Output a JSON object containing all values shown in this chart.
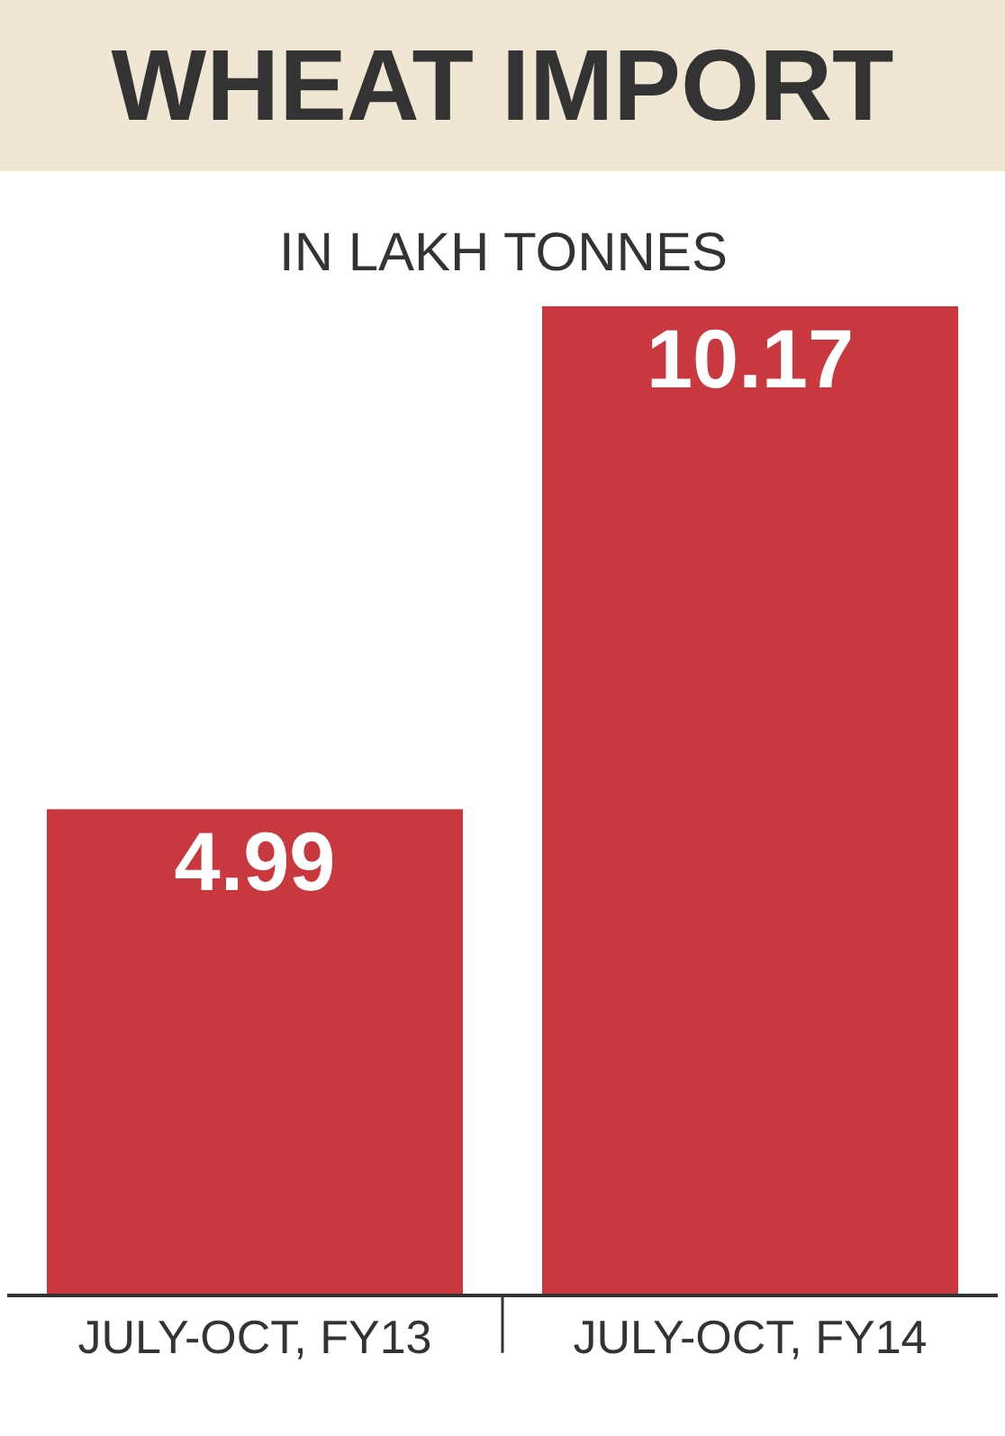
{
  "chart_data": {
    "type": "bar",
    "title": "WHEAT IMPORT",
    "subtitle": "IN LAKH TONNES",
    "categories": [
      "JULY-OCT, FY13",
      "JULY-OCT, FY14"
    ],
    "values": [
      4.99,
      10.17
    ],
    "color": "#c9383f",
    "data_labels": true
  }
}
